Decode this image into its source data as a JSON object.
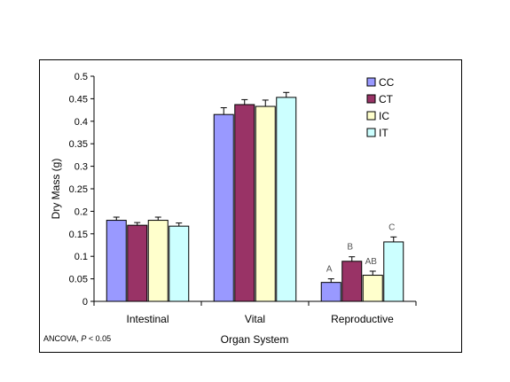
{
  "chart_data": {
    "type": "bar",
    "xlabel": "Organ System",
    "ylabel": "Dry Mass (g)",
    "ylim": [
      0,
      0.5
    ],
    "yticks": [
      "0",
      "0.05",
      "0.1",
      "0.15",
      "0.2",
      "0.25",
      "0.3",
      "0.35",
      "0.4",
      "0.45",
      "0.5"
    ],
    "categories": [
      "Intestinal",
      "Vital",
      "Reproductive"
    ],
    "series": [
      {
        "name": "CC",
        "color": "#9999ff",
        "values": [
          0.18,
          0.415,
          0.042
        ],
        "errors": [
          0.007,
          0.015,
          0.008
        ]
      },
      {
        "name": "CT",
        "color": "#993366",
        "values": [
          0.169,
          0.437,
          0.089
        ],
        "errors": [
          0.006,
          0.011,
          0.01
        ]
      },
      {
        "name": "IC",
        "color": "#ffffcc",
        "values": [
          0.18,
          0.433,
          0.058
        ],
        "errors": [
          0.007,
          0.014,
          0.009
        ]
      },
      {
        "name": "IT",
        "color": "#ccffff",
        "values": [
          0.167,
          0.453,
          0.132
        ],
        "errors": [
          0.007,
          0.011,
          0.011
        ]
      }
    ],
    "significance_labels": [
      {
        "category": "Reproductive",
        "series": "CC",
        "text": "A"
      },
      {
        "category": "Reproductive",
        "series": "CT",
        "text": "B"
      },
      {
        "category": "Reproductive",
        "series": "IC",
        "text": "AB"
      },
      {
        "category": "Reproductive",
        "series": "IT",
        "text": "C"
      }
    ],
    "legend_position": "top-right",
    "grid": false
  },
  "footnote": {
    "prefix": "ANCOVA, ",
    "p_symbol": "P",
    "suffix": " < 0.05"
  }
}
